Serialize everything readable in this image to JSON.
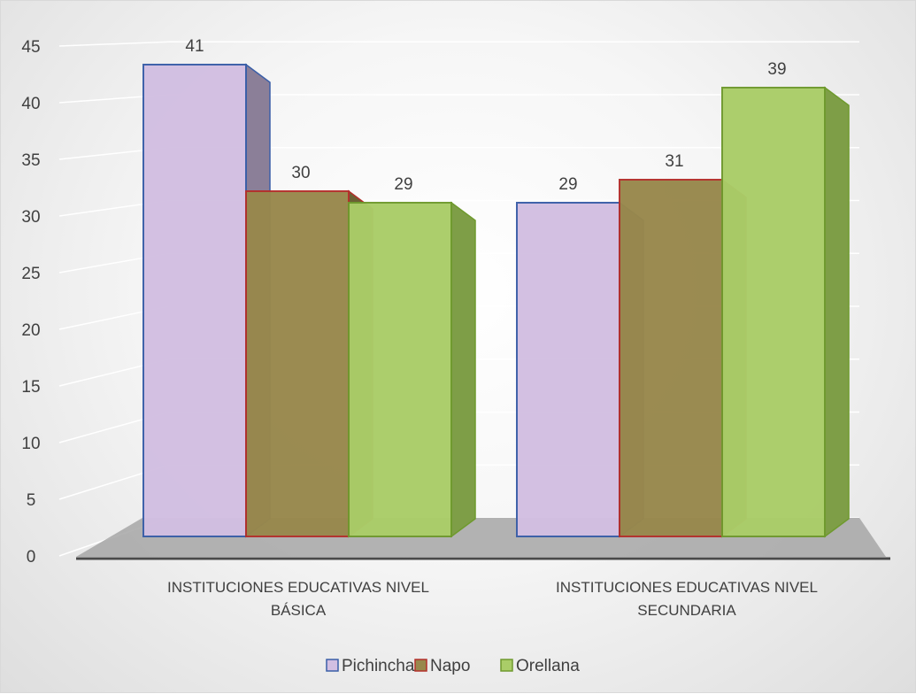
{
  "chart_data": {
    "type": "bar",
    "style": "3d-clustered-column",
    "categories": [
      [
        "INSTITUCIONES EDUCATIVAS NIVEL",
        "BÁSICA"
      ],
      [
        "INSTITUCIONES EDUCATIVAS NIVEL",
        "SECUNDARIA"
      ]
    ],
    "series": [
      {
        "name": "Pichincha",
        "values": [
          41,
          29
        ],
        "data_labels": [
          "41",
          "29"
        ],
        "fill": "#d2bfe2",
        "stroke": "#3b5fa8",
        "side": "#8b7f98"
      },
      {
        "name": "Napo",
        "values": [
          30,
          31
        ],
        "data_labels": [
          "30",
          "31"
        ],
        "fill": "#98884c",
        "stroke": "#b3302b",
        "side": "#6b6034"
      },
      {
        "name": "Orellana",
        "values": [
          29,
          39
        ],
        "data_labels": [
          "29",
          "39"
        ],
        "fill": "#aacd68",
        "stroke": "#6f9a2e",
        "side": "#7e9e47"
      }
    ],
    "yticks": [
      "0",
      "5",
      "10",
      "15",
      "20",
      "25",
      "30",
      "35",
      "40",
      "45"
    ],
    "ylim": [
      0,
      45
    ],
    "grid": true,
    "legend": "bottom",
    "title": "",
    "xlabel": "",
    "ylabel": ""
  }
}
